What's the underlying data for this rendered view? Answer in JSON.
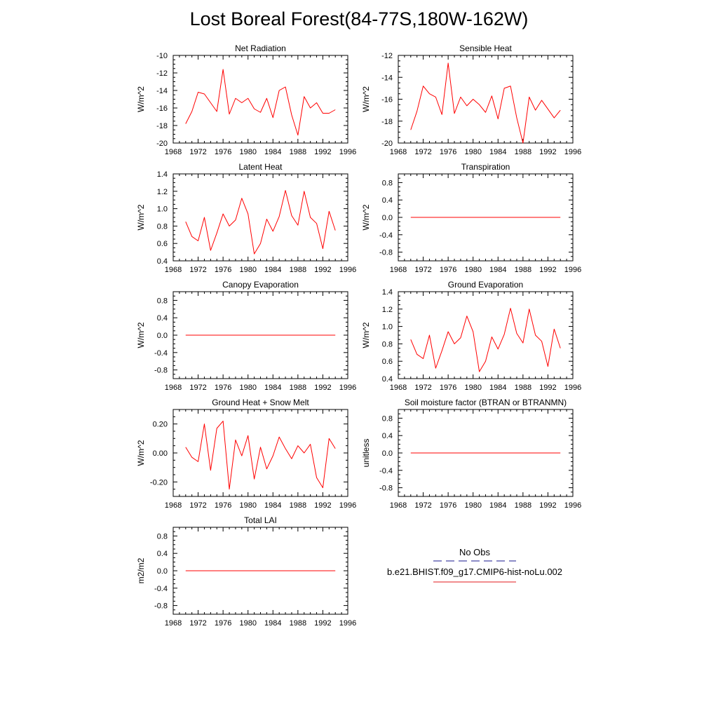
{
  "title": "Lost Boreal Forest(84-77S,180W-162W)",
  "legend": {
    "items": [
      {
        "label": "No Obs",
        "color": "#1a1a8c",
        "style": "dashed"
      },
      {
        "label": "b.e21.BHIST.f09_g17.CMIP6-hist-noLu.002",
        "color": "#e31a1c",
        "style": "solid"
      }
    ]
  },
  "colors": {
    "series": "#ff0000",
    "axis": "#000000"
  },
  "chart_data": [
    {
      "type": "line",
      "title": "Net Radiation",
      "xlabel": "",
      "ylabel": "W/m^2",
      "xlim": [
        1968,
        1996
      ],
      "ylim": [
        -20,
        -10
      ],
      "xticks": [
        1968,
        1972,
        1976,
        1980,
        1984,
        1988,
        1992,
        1996
      ],
      "xtick_labels": [
        "1968",
        "1972",
        "1976",
        "1980",
        "1984",
        "1988",
        "1992",
        "1996"
      ],
      "yticks": [
        -20,
        -18,
        -16,
        -14,
        -12,
        -10
      ],
      "ytick_labels": [
        "-20",
        "-18",
        "-16",
        "-14",
        "-12",
        "-10"
      ],
      "series": [
        {
          "x": [
            1970,
            1971,
            1972,
            1973,
            1974,
            1975,
            1976,
            1977,
            1978,
            1979,
            1980,
            1981,
            1982,
            1983,
            1984,
            1985,
            1986,
            1987,
            1988,
            1989,
            1990,
            1991,
            1992,
            1993,
            1994
          ],
          "y": [
            -17.8,
            -16.4,
            -14.2,
            -14.4,
            -15.4,
            -16.4,
            -11.6,
            -16.7,
            -14.9,
            -15.4,
            -14.9,
            -16.1,
            -16.5,
            -14.9,
            -17.1,
            -14.0,
            -13.6,
            -16.8,
            -19.1,
            -14.7,
            -16.0,
            -15.4,
            -16.6,
            -16.6,
            -16.2
          ]
        }
      ]
    },
    {
      "type": "line",
      "title": "Sensible Heat",
      "xlabel": "",
      "ylabel": "W/m^2",
      "xlim": [
        1968,
        1996
      ],
      "ylim": [
        -20,
        -12
      ],
      "xticks": [
        1968,
        1972,
        1976,
        1980,
        1984,
        1988,
        1992,
        1996
      ],
      "xtick_labels": [
        "1968",
        "1972",
        "1976",
        "1980",
        "1984",
        "1988",
        "1992",
        "1996"
      ],
      "yticks": [
        -20,
        -18,
        -16,
        -14,
        -12
      ],
      "ytick_labels": [
        "-20",
        "-18",
        "-16",
        "-14",
        "-12"
      ],
      "series": [
        {
          "x": [
            1970,
            1971,
            1972,
            1973,
            1974,
            1975,
            1976,
            1977,
            1978,
            1979,
            1980,
            1981,
            1982,
            1983,
            1984,
            1985,
            1986,
            1987,
            1988,
            1989,
            1990,
            1991,
            1992,
            1993,
            1994
          ],
          "y": [
            -18.8,
            -17.1,
            -14.8,
            -15.5,
            -15.8,
            -17.4,
            -12.7,
            -17.3,
            -15.8,
            -16.6,
            -16.0,
            -16.5,
            -17.2,
            -15.7,
            -17.8,
            -15.0,
            -14.8,
            -17.7,
            -20.0,
            -15.8,
            -17.0,
            -16.1,
            -16.9,
            -17.7,
            -17.0
          ]
        }
      ]
    },
    {
      "type": "line",
      "title": "Latent Heat",
      "xlabel": "",
      "ylabel": "W/m^2",
      "xlim": [
        1968,
        1996
      ],
      "ylim": [
        0.4,
        1.4
      ],
      "xticks": [
        1968,
        1972,
        1976,
        1980,
        1984,
        1988,
        1992,
        1996
      ],
      "xtick_labels": [
        "1968",
        "1972",
        "1976",
        "1980",
        "1984",
        "1988",
        "1992",
        "1996"
      ],
      "yticks": [
        0.4,
        0.6,
        0.8,
        1.0,
        1.2,
        1.4
      ],
      "ytick_labels": [
        "0.4",
        "0.6",
        "0.8",
        "1.0",
        "1.2",
        "1.4"
      ],
      "series": [
        {
          "x": [
            1970,
            1971,
            1972,
            1973,
            1974,
            1975,
            1976,
            1977,
            1978,
            1979,
            1980,
            1981,
            1982,
            1983,
            1984,
            1985,
            1986,
            1987,
            1988,
            1989,
            1990,
            1991,
            1992,
            1993,
            1994
          ],
          "y": [
            0.85,
            0.68,
            0.63,
            0.9,
            0.52,
            0.72,
            0.94,
            0.8,
            0.87,
            1.12,
            0.94,
            0.48,
            0.6,
            0.88,
            0.74,
            0.91,
            1.21,
            0.92,
            0.81,
            1.2,
            0.9,
            0.83,
            0.54,
            0.97,
            0.75
          ]
        }
      ]
    },
    {
      "type": "line",
      "title": "Transpiration",
      "xlabel": "",
      "ylabel": "W/m^2",
      "xlim": [
        1968,
        1996
      ],
      "ylim": [
        -1,
        1
      ],
      "xticks": [
        1968,
        1972,
        1976,
        1980,
        1984,
        1988,
        1992,
        1996
      ],
      "xtick_labels": [
        "1968",
        "1972",
        "1976",
        "1980",
        "1984",
        "1988",
        "1992",
        "1996"
      ],
      "yticks": [
        -0.8,
        -0.4,
        0.0,
        0.4,
        0.8
      ],
      "ytick_labels": [
        "-0.8",
        "-0.4",
        "0.0",
        "0.4",
        "0.8"
      ],
      "series": [
        {
          "x": [
            1970,
            1994
          ],
          "y": [
            0,
            0
          ]
        }
      ]
    },
    {
      "type": "line",
      "title": "Canopy Evaporation",
      "xlabel": "",
      "ylabel": "W/m^2",
      "xlim": [
        1968,
        1996
      ],
      "ylim": [
        -1,
        1
      ],
      "xticks": [
        1968,
        1972,
        1976,
        1980,
        1984,
        1988,
        1992,
        1996
      ],
      "xtick_labels": [
        "1968",
        "1972",
        "1976",
        "1980",
        "1984",
        "1988",
        "1992",
        "1996"
      ],
      "yticks": [
        -0.8,
        -0.4,
        0.0,
        0.4,
        0.8
      ],
      "ytick_labels": [
        "-0.8",
        "-0.4",
        "0.0",
        "0.4",
        "0.8"
      ],
      "series": [
        {
          "x": [
            1970,
            1994
          ],
          "y": [
            0,
            0
          ]
        }
      ]
    },
    {
      "type": "line",
      "title": "Ground Evaporation",
      "xlabel": "",
      "ylabel": "W/m^2",
      "xlim": [
        1968,
        1996
      ],
      "ylim": [
        0.4,
        1.4
      ],
      "xticks": [
        1968,
        1972,
        1976,
        1980,
        1984,
        1988,
        1992,
        1996
      ],
      "xtick_labels": [
        "1968",
        "1972",
        "1976",
        "1980",
        "1984",
        "1988",
        "1992",
        "1996"
      ],
      "yticks": [
        0.4,
        0.6,
        0.8,
        1.0,
        1.2,
        1.4
      ],
      "ytick_labels": [
        "0.4",
        "0.6",
        "0.8",
        "1.0",
        "1.2",
        "1.4"
      ],
      "series": [
        {
          "x": [
            1970,
            1971,
            1972,
            1973,
            1974,
            1975,
            1976,
            1977,
            1978,
            1979,
            1980,
            1981,
            1982,
            1983,
            1984,
            1985,
            1986,
            1987,
            1988,
            1989,
            1990,
            1991,
            1992,
            1993,
            1994
          ],
          "y": [
            0.85,
            0.68,
            0.63,
            0.9,
            0.52,
            0.72,
            0.94,
            0.8,
            0.87,
            1.12,
            0.94,
            0.48,
            0.6,
            0.88,
            0.74,
            0.91,
            1.21,
            0.92,
            0.81,
            1.2,
            0.9,
            0.83,
            0.54,
            0.97,
            0.75
          ]
        }
      ]
    },
    {
      "type": "line",
      "title": "Ground Heat + Snow Melt",
      "xlabel": "",
      "ylabel": "W/m^2",
      "xlim": [
        1968,
        1996
      ],
      "ylim": [
        -0.3,
        0.3
      ],
      "xticks": [
        1968,
        1972,
        1976,
        1980,
        1984,
        1988,
        1992,
        1996
      ],
      "xtick_labels": [
        "1968",
        "1972",
        "1976",
        "1980",
        "1984",
        "1988",
        "1992",
        "1996"
      ],
      "yticks": [
        -0.2,
        0.0,
        0.2
      ],
      "ytick_labels": [
        "-0.20",
        "0.00",
        "0.20"
      ],
      "series": [
        {
          "x": [
            1970,
            1971,
            1972,
            1973,
            1974,
            1975,
            1976,
            1977,
            1978,
            1979,
            1980,
            1981,
            1982,
            1983,
            1984,
            1985,
            1986,
            1987,
            1988,
            1989,
            1990,
            1991,
            1992,
            1993,
            1994
          ],
          "y": [
            0.04,
            -0.03,
            -0.06,
            0.2,
            -0.12,
            0.17,
            0.22,
            -0.25,
            0.09,
            -0.02,
            0.12,
            -0.18,
            0.04,
            -0.11,
            -0.02,
            0.11,
            0.03,
            -0.04,
            0.05,
            0.0,
            0.06,
            -0.17,
            -0.24,
            0.1,
            0.03
          ]
        }
      ]
    },
    {
      "type": "line",
      "title": "Soil moisture factor (BTRAN or BTRANMN)",
      "xlabel": "",
      "ylabel": "unitless",
      "xlim": [
        1968,
        1996
      ],
      "ylim": [
        -1,
        1
      ],
      "xticks": [
        1968,
        1972,
        1976,
        1980,
        1984,
        1988,
        1992,
        1996
      ],
      "xtick_labels": [
        "1968",
        "1972",
        "1976",
        "1980",
        "1984",
        "1988",
        "1992",
        "1996"
      ],
      "yticks": [
        -0.8,
        -0.4,
        0.0,
        0.4,
        0.8
      ],
      "ytick_labels": [
        "-0.8",
        "-0.4",
        "0.0",
        "0.4",
        "0.8"
      ],
      "series": [
        {
          "x": [
            1970,
            1994
          ],
          "y": [
            0,
            0
          ]
        }
      ]
    },
    {
      "type": "line",
      "title": "Total LAI",
      "xlabel": "",
      "ylabel": "m2/m2",
      "xlim": [
        1968,
        1996
      ],
      "ylim": [
        -1,
        1
      ],
      "xticks": [
        1968,
        1972,
        1976,
        1980,
        1984,
        1988,
        1992,
        1996
      ],
      "xtick_labels": [
        "1968",
        "1972",
        "1976",
        "1980",
        "1984",
        "1988",
        "1992",
        "1996"
      ],
      "yticks": [
        -0.8,
        -0.4,
        0.0,
        0.4,
        0.8
      ],
      "ytick_labels": [
        "-0.8",
        "-0.4",
        "0.0",
        "0.4",
        "0.8"
      ],
      "series": [
        {
          "x": [
            1970,
            1994
          ],
          "y": [
            0,
            0
          ]
        }
      ]
    }
  ]
}
